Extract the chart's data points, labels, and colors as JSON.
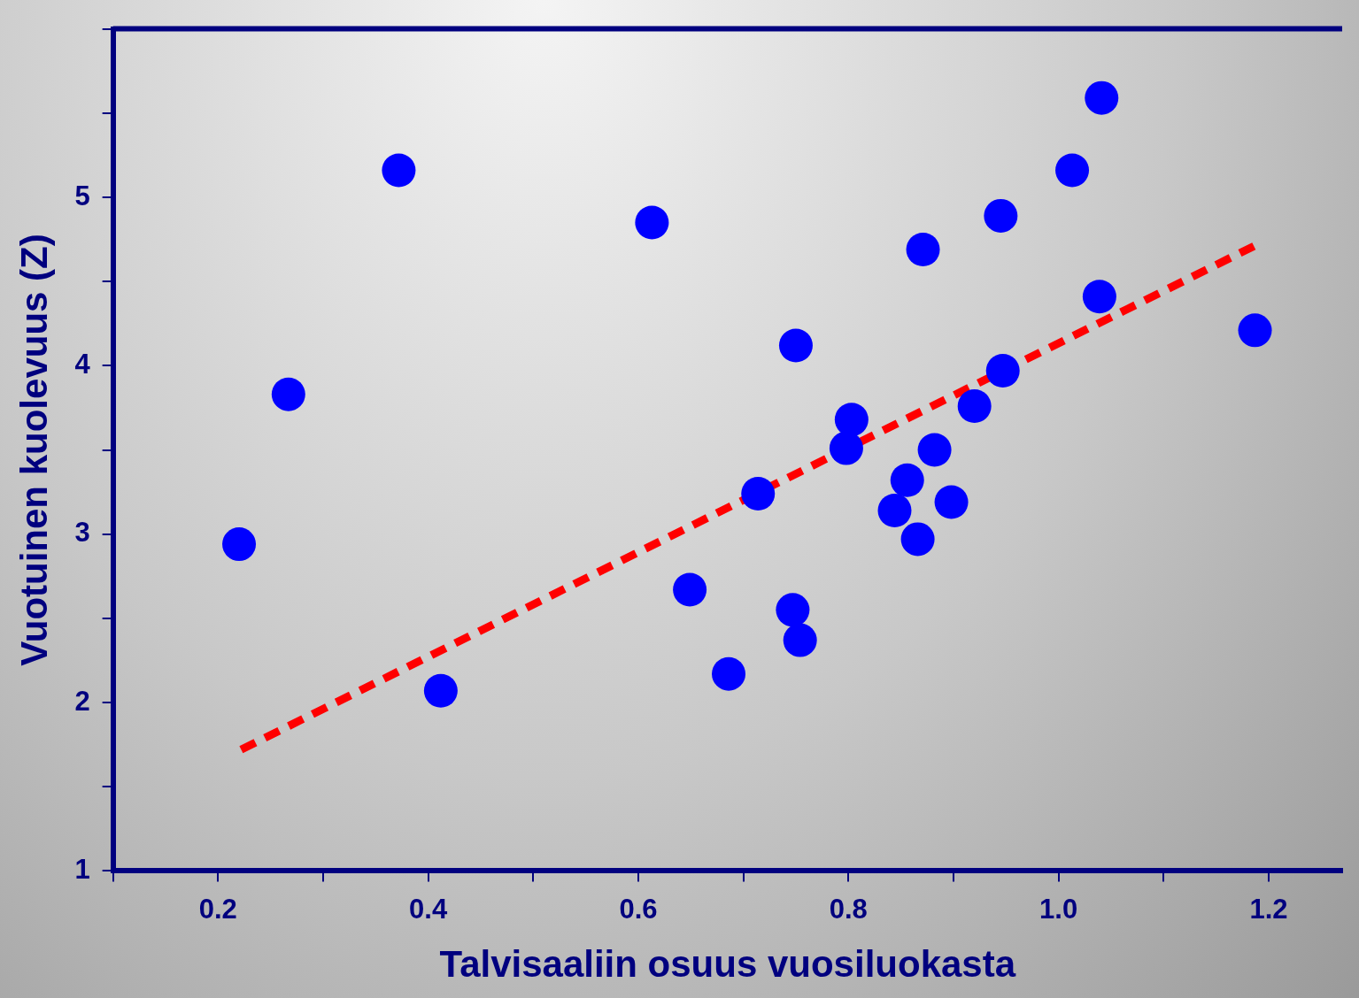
{
  "chart_data": {
    "type": "scatter",
    "xlabel": "Talvisaaliin osuus vuosiluokasta",
    "ylabel": "Vuotuinen kuolevuus (Z)",
    "xlim": [
      0.1,
      1.27
    ],
    "ylim": [
      1,
      6
    ],
    "xticks": [
      {
        "value": 0.1,
        "label": null
      },
      0.2,
      {
        "value": 0.3,
        "label": null
      },
      0.4,
      {
        "value": 0.5,
        "label": null
      },
      0.6,
      {
        "value": 0.7,
        "label": null
      },
      0.8,
      {
        "value": 0.9,
        "label": null
      },
      {
        "value": 1.0,
        "label": "1.0"
      },
      {
        "value": 1.1,
        "label": null
      },
      1.2
    ],
    "yticks": [
      1,
      {
        "value": 1.5,
        "label": null
      },
      2,
      {
        "value": 2.5,
        "label": null
      },
      3,
      {
        "value": 3.5,
        "label": null
      },
      4,
      {
        "value": 4.5,
        "label": null
      },
      5,
      {
        "value": 5.5,
        "label": null
      },
      {
        "value": 6,
        "label": null
      }
    ],
    "grid": false,
    "legend": false,
    "series": [
      {
        "color": "#0000ff",
        "marker": "circle",
        "x": [
          0.22,
          0.267,
          0.372,
          0.412,
          0.613,
          0.649,
          0.686,
          0.714,
          0.747,
          0.75,
          0.754,
          0.798,
          0.803,
          0.844,
          0.856,
          0.866,
          0.871,
          0.882,
          0.898,
          0.92,
          0.945,
          0.947,
          1.013,
          1.039,
          1.041,
          1.187
        ],
        "values": [
          2.94,
          3.83,
          5.16,
          2.07,
          4.85,
          2.67,
          2.17,
          3.24,
          2.55,
          4.12,
          2.37,
          3.51,
          3.68,
          3.14,
          3.32,
          2.97,
          4.69,
          3.5,
          3.19,
          3.76,
          4.89,
          3.97,
          5.16,
          4.41,
          5.59,
          4.21
        ]
      },
      {
        "type": "line",
        "marker": "none",
        "line_style": "dashed",
        "color": "#ff0000",
        "x": [
          0.222,
          1.186
        ],
        "values": [
          1.72,
          4.71
        ]
      }
    ]
  }
}
